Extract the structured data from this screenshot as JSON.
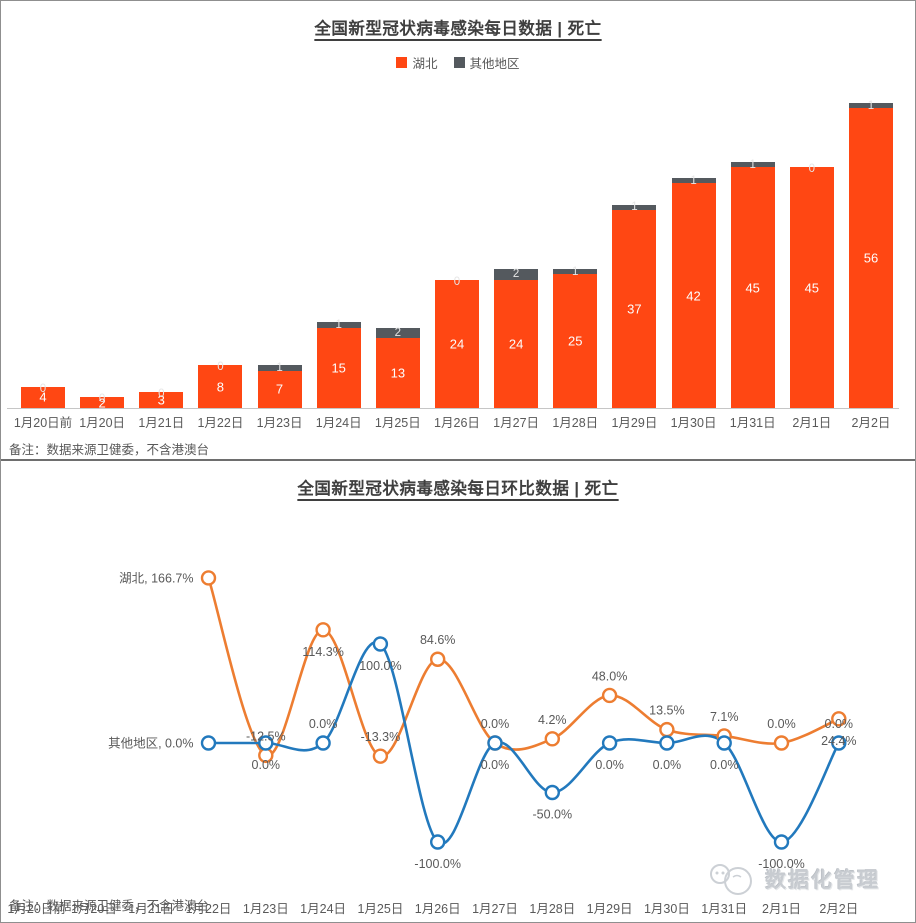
{
  "chart_data": [
    {
      "type": "bar",
      "stacked": true,
      "title": "全国新型冠状病毒感染每日数据 | 死亡",
      "note": "备注：数据来源卫健委，不含港澳台",
      "legend_position": "top",
      "grid": false,
      "ylim": [
        0,
        60
      ],
      "categories": [
        "1月20日前",
        "1月20日",
        "1月21日",
        "1月22日",
        "1月23日",
        "1月24日",
        "1月25日",
        "1月26日",
        "1月27日",
        "1月28日",
        "1月29日",
        "1月30日",
        "1月31日",
        "2月1日",
        "2月2日"
      ],
      "series": [
        {
          "name": "湖北",
          "color": "#FF4713",
          "label_color": "#FDFDFD",
          "values": [
            4,
            2,
            3,
            8,
            7,
            15,
            13,
            24,
            24,
            25,
            37,
            42,
            45,
            45,
            56
          ]
        },
        {
          "name": "其他地区",
          "color": "#54595E",
          "label_color": "#E6E6E6",
          "values": [
            0,
            0,
            0,
            0,
            1,
            1,
            2,
            0,
            2,
            1,
            1,
            1,
            1,
            0,
            1
          ]
        }
      ]
    },
    {
      "type": "line",
      "smooth": true,
      "title": "全国新型冠状病毒感染每日环比数据 | 死亡",
      "note": "备注：数据来源卫健委，不含港澳台",
      "unit": "percent",
      "grid": false,
      "ylim": [
        -130,
        200
      ],
      "categories": [
        "1月20日前",
        "1月20日",
        "1月21日",
        "1月22日",
        "1月23日",
        "1月24日",
        "1月25日",
        "1月26日",
        "1月27日",
        "1月28日",
        "1月29日",
        "1月30日",
        "1月31日",
        "2月1日",
        "2月2日"
      ],
      "start_category_index": 3,
      "series": [
        {
          "name": "湖北",
          "color": "#ED7D31",
          "values": [
            166.7,
            -12.5,
            114.3,
            -13.3,
            84.6,
            0.0,
            4.2,
            48.0,
            13.5,
            7.1,
            0.0,
            24.4
          ],
          "labels": [
            "湖北, 166.7%",
            "-12.5%",
            "114.3%",
            "-13.3%",
            "84.6%",
            "0.0%",
            "4.2%",
            "48.0%",
            "13.5%",
            "7.1%",
            "0.0%",
            "24.4%"
          ],
          "label_placement": [
            "left",
            "above",
            "below",
            "above",
            "above",
            "above",
            "above",
            "above",
            "above",
            "above",
            "above",
            "below"
          ]
        },
        {
          "name": "其他地区",
          "color": "#2279BD",
          "values": [
            0.0,
            0.0,
            0.0,
            100.0,
            -100.0,
            0.0,
            -50.0,
            0.0,
            0.0,
            0.0,
            -100.0,
            0.0
          ],
          "labels": [
            "其他地区, 0.0%",
            "0.0%",
            "0.0%",
            "100.0%",
            "-100.0%",
            "0.0%",
            "-50.0%",
            "0.0%",
            "0.0%",
            "0.0%",
            "-100.0%",
            "0.0%"
          ],
          "label_placement": [
            "left",
            "below",
            "above",
            "below",
            "below",
            "below",
            "below",
            "below",
            "below",
            "below",
            "below",
            "above"
          ]
        }
      ]
    }
  ],
  "watermark": {
    "text": "数据化管理"
  }
}
